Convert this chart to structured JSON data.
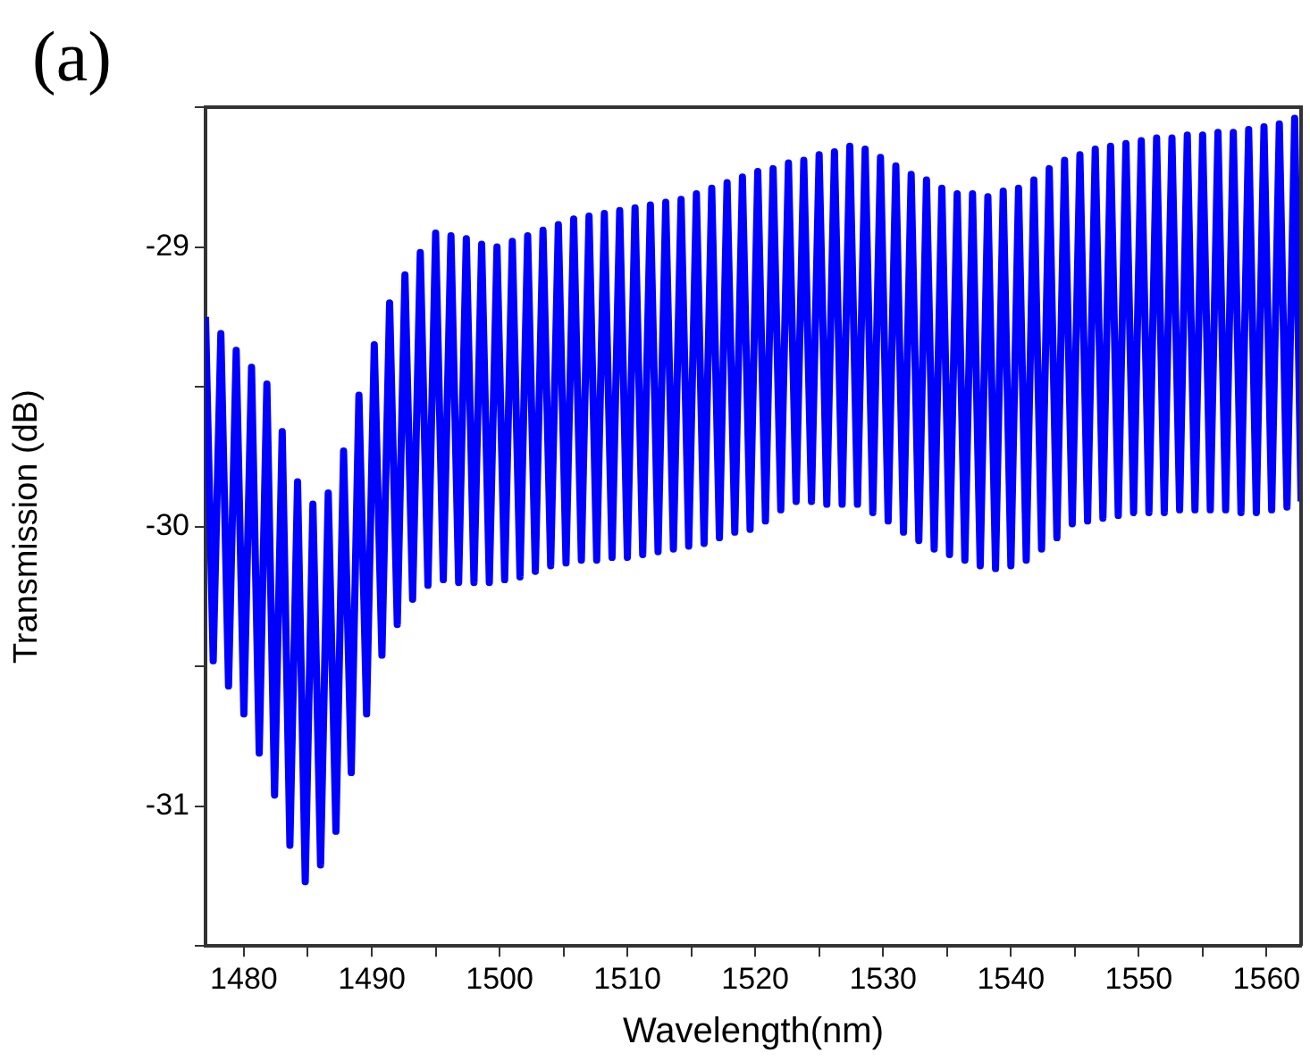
{
  "chart_data": {
    "type": "line",
    "xlabel": "Wavelength(nm)",
    "ylabel": "Transmission (dB)",
    "annotations": [
      "(a)"
    ],
    "x": [
      1477.0,
      1477.6,
      1478.2,
      1478.8,
      1479.4,
      1480.0,
      1480.6,
      1481.2,
      1481.8,
      1482.4,
      1483.0,
      1483.6,
      1484.2,
      1484.8,
      1485.4,
      1486.0,
      1486.6,
      1487.2,
      1487.8,
      1488.4,
      1489.0,
      1489.6,
      1490.2,
      1490.8,
      1491.4,
      1492.0,
      1492.6,
      1493.2,
      1493.8,
      1494.4,
      1495.0,
      1495.6,
      1496.2,
      1496.8,
      1497.4,
      1498.0,
      1498.6,
      1499.2,
      1499.8,
      1500.4,
      1501.0,
      1501.6,
      1502.2,
      1502.8,
      1503.4,
      1504.0,
      1504.6,
      1505.2,
      1505.8,
      1506.4,
      1507.0,
      1507.6,
      1508.2,
      1508.8,
      1509.4,
      1510.0,
      1510.6,
      1511.2,
      1511.8,
      1512.4,
      1513.0,
      1513.6,
      1514.2,
      1514.8,
      1515.4,
      1516.0,
      1516.6,
      1517.2,
      1517.8,
      1518.4,
      1519.0,
      1519.6,
      1520.2,
      1520.8,
      1521.4,
      1522.0,
      1522.6,
      1523.2,
      1523.8,
      1524.4,
      1525.0,
      1525.6,
      1526.2,
      1526.8,
      1527.4,
      1528.0,
      1528.6,
      1529.2,
      1529.8,
      1530.4,
      1531.0,
      1531.6,
      1532.2,
      1532.8,
      1533.4,
      1534.0,
      1534.6,
      1535.2,
      1535.8,
      1536.4,
      1537.0,
      1537.6,
      1538.2,
      1538.8,
      1539.4,
      1540.0,
      1540.6,
      1541.2,
      1541.8,
      1542.4,
      1543.0,
      1543.6,
      1544.2,
      1544.8,
      1545.4,
      1546.0,
      1546.6,
      1547.2,
      1547.8,
      1548.4,
      1549.0,
      1549.6,
      1550.2,
      1550.8,
      1551.4,
      1552.0,
      1552.6,
      1553.2,
      1553.8,
      1554.4,
      1555.0,
      1555.6,
      1556.2,
      1556.8,
      1557.4,
      1558.0,
      1558.6,
      1559.2,
      1559.8,
      1560.4,
      1561.0,
      1561.6,
      1562.2,
      1562.7
    ],
    "series": [
      {
        "color": "#0000ff",
        "values": [
          -29.25,
          -30.48,
          -29.31,
          -30.57,
          -29.37,
          -30.67,
          -29.43,
          -30.81,
          -29.49,
          -30.96,
          -29.66,
          -31.14,
          -29.84,
          -31.27,
          -29.92,
          -31.21,
          -29.88,
          -31.09,
          -29.73,
          -30.88,
          -29.53,
          -30.67,
          -29.35,
          -30.46,
          -29.2,
          -30.35,
          -29.1,
          -30.26,
          -29.02,
          -30.21,
          -28.95,
          -30.19,
          -28.96,
          -30.2,
          -28.97,
          -30.2,
          -28.99,
          -30.2,
          -29.0,
          -30.19,
          -28.98,
          -30.18,
          -28.96,
          -30.16,
          -28.94,
          -30.14,
          -28.92,
          -30.13,
          -28.9,
          -30.12,
          -28.89,
          -30.12,
          -28.88,
          -30.11,
          -28.87,
          -30.11,
          -28.86,
          -30.1,
          -28.85,
          -30.09,
          -28.84,
          -30.08,
          -28.83,
          -30.07,
          -28.81,
          -30.06,
          -28.79,
          -30.04,
          -28.77,
          -30.02,
          -28.75,
          -30.01,
          -28.73,
          -29.98,
          -28.72,
          -29.94,
          -28.7,
          -29.91,
          -28.69,
          -29.91,
          -28.67,
          -29.92,
          -28.66,
          -29.92,
          -28.64,
          -29.92,
          -28.65,
          -29.95,
          -28.68,
          -29.98,
          -28.71,
          -30.02,
          -28.74,
          -30.05,
          -28.76,
          -30.08,
          -28.79,
          -30.1,
          -28.81,
          -30.12,
          -28.81,
          -30.14,
          -28.82,
          -30.15,
          -28.8,
          -30.14,
          -28.79,
          -30.12,
          -28.76,
          -30.08,
          -28.72,
          -30.04,
          -28.69,
          -29.99,
          -28.67,
          -29.98,
          -28.65,
          -29.97,
          -28.64,
          -29.96,
          -28.63,
          -29.95,
          -28.62,
          -29.95,
          -28.61,
          -29.95,
          -28.61,
          -29.94,
          -28.6,
          -29.94,
          -28.6,
          -29.94,
          -28.59,
          -29.94,
          -28.59,
          -29.95,
          -28.58,
          -29.95,
          -28.57,
          -29.94,
          -28.56,
          -29.93,
          -28.54,
          -29.91
        ]
      }
    ],
    "xlim": [
      1477,
      1562.7
    ],
    "xticks": [
      1480,
      {
        "value": 1485,
        "label": null
      },
      1490,
      {
        "value": 1495,
        "label": null
      },
      1500,
      {
        "value": 1505,
        "label": null
      },
      1510,
      {
        "value": 1515,
        "label": null
      },
      1520,
      {
        "value": 1525,
        "label": null
      },
      1530,
      {
        "value": 1535,
        "label": null
      },
      1540,
      {
        "value": 1545,
        "label": null
      },
      1550,
      {
        "value": 1555,
        "label": null
      },
      1560
    ],
    "ylim": [
      -31.5,
      -28.5
    ],
    "yticks": [
      {
        "value": -31.5,
        "label": null
      },
      -31,
      {
        "value": -30.5,
        "label": null
      },
      -30,
      {
        "value": -29.5,
        "label": null
      },
      -29,
      {
        "value": -28.5,
        "label": null
      }
    ],
    "grid": false,
    "legend": false,
    "line_style": "solid"
  }
}
